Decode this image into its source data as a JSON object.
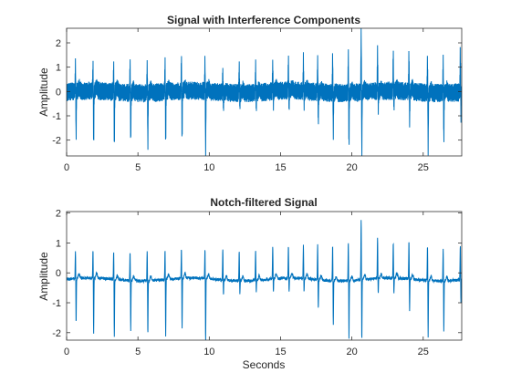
{
  "colors": {
    "line": "#0072BD",
    "axis": "#262626",
    "background": "#ffffff"
  },
  "chart_data": [
    {
      "type": "line",
      "title": "Signal with Interference Components",
      "xlabel": "",
      "ylabel": "Amplitude",
      "xlim": [
        0,
        27.7
      ],
      "ylim": [
        -2.65,
        2.6
      ],
      "xticks": [
        0,
        5,
        10,
        15,
        20,
        25
      ],
      "yticks": [
        -2,
        -1,
        0,
        1,
        2
      ],
      "grid": false,
      "box": true,
      "signal": {
        "description_values": "ECG-like trace with strong periodic interference",
        "beat_times": [
          0.62,
          1.85,
          3.3,
          4.45,
          5.65,
          6.9,
          8.05,
          9.7,
          10.95,
          12.1,
          13.25,
          14.45,
          15.55,
          16.6,
          17.6,
          18.65,
          19.75,
          20.65,
          21.8,
          22.9,
          24.0,
          25.3,
          26.4,
          27.6
        ],
        "beat_peaks": [
          1.1,
          1.05,
          1.1,
          1.15,
          1.15,
          1.15,
          1.25,
          1.2,
          0.8,
          1.1,
          1.05,
          1.1,
          1.2,
          1.25,
          1.3,
          1.45,
          1.5,
          2.55,
          1.55,
          1.4,
          1.45,
          1.35,
          1.25,
          1.6
        ],
        "beat_troughs": [
          -1.95,
          -2.25,
          -2.35,
          -2.0,
          -2.1,
          -2.2,
          -2.0,
          -2.6,
          -0.6,
          -0.5,
          -0.55,
          -0.6,
          -0.6,
          -0.6,
          -1.3,
          -1.75,
          -2.25,
          -2.45,
          -0.7,
          -0.65,
          -1.3,
          -2.25,
          -2.0,
          -1.0
        ],
        "interference_amplitude": 0.38
      }
    },
    {
      "type": "line",
      "title": "Notch-filtered Signal",
      "xlabel": "Seconds",
      "ylabel": "Amplitude",
      "xlim": [
        0,
        27.7
      ],
      "ylim": [
        -2.25,
        2.05
      ],
      "xticks": [
        0,
        5,
        10,
        15,
        20,
        25
      ],
      "yticks": [
        -2,
        -1,
        0,
        1,
        2
      ],
      "grid": false,
      "box": true,
      "signal": {
        "beat_times": [
          0.62,
          1.85,
          3.3,
          4.45,
          5.65,
          6.9,
          8.05,
          9.7,
          10.95,
          12.1,
          13.25,
          14.45,
          15.55,
          16.6,
          17.6,
          18.65,
          19.75,
          20.65,
          21.8,
          22.9,
          24.0,
          25.3,
          26.4,
          27.6
        ],
        "beat_peaks": [
          0.95,
          0.95,
          0.95,
          1.0,
          1.0,
          1.0,
          1.0,
          1.0,
          1.05,
          1.0,
          1.0,
          1.1,
          1.05,
          1.1,
          1.15,
          1.2,
          1.3,
          2.05,
          1.35,
          1.2,
          1.3,
          1.15,
          1.1,
          1.15
        ],
        "beat_troughs": [
          -1.55,
          -1.9,
          -2.0,
          -1.7,
          -1.8,
          -1.9,
          -1.75,
          -2.2,
          -0.5,
          -0.45,
          -0.45,
          -0.5,
          -0.5,
          -0.5,
          -1.05,
          -1.5,
          -1.95,
          -2.1,
          -0.6,
          -0.55,
          -1.1,
          -1.9,
          -1.75,
          -0.85
        ],
        "interference_amplitude": 0.0
      }
    }
  ]
}
